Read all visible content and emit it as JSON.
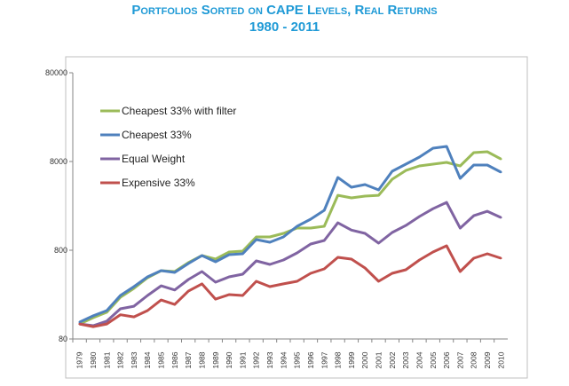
{
  "chart_data": {
    "type": "line",
    "title": "Portfolios Sorted on CAPE Levels, Real Returns",
    "subtitle": "1980 - 2011",
    "xlabel": "",
    "ylabel": "",
    "y_scale": "log",
    "ylim": [
      80,
      80000
    ],
    "yticks": [
      "80",
      "800",
      "8000",
      "80000"
    ],
    "grid": false,
    "legend_position": "top-left",
    "x": [
      "1979",
      "1980",
      "1981",
      "1982",
      "1983",
      "1984",
      "1985",
      "1986",
      "1987",
      "1988",
      "1989",
      "1990",
      "1991",
      "1992",
      "1993",
      "1994",
      "1995",
      "1996",
      "1997",
      "1998",
      "1999",
      "2000",
      "2001",
      "2002",
      "2003",
      "2004",
      "2005",
      "2006",
      "2007",
      "2008",
      "2009",
      "2010"
    ],
    "series": [
      {
        "name": "Cheapest 33% with filter",
        "color": "#9bbb59",
        "values": [
          118,
          139,
          160,
          236,
          297,
          392,
          471,
          460,
          580,
          697,
          636,
          764,
          782,
          1129,
          1129,
          1238,
          1423,
          1423,
          1490,
          3330,
          3110,
          3260,
          3330,
          5050,
          6340,
          7130,
          7460,
          7820,
          7130,
          10070,
          10300,
          8530
        ]
      },
      {
        "name": "Cheapest 33%",
        "color": "#4f81bd",
        "values": [
          124,
          146,
          167,
          247,
          311,
          401,
          471,
          450,
          566,
          697,
          593,
          713,
          730,
          1054,
          984,
          1129,
          1490,
          1791,
          2255,
          5288,
          4104,
          4400,
          3830,
          6205,
          7464,
          8970,
          11290,
          11820,
          5170,
          7290,
          7290,
          6070
        ]
      },
      {
        "name": "Equal Weight",
        "color": "#8064a2",
        "values": [
          118,
          113,
          127,
          175,
          187,
          247,
          318,
          285,
          374,
          460,
          349,
          401,
          430,
          607,
          553,
          621,
          747,
          940,
          1030,
          1630,
          1350,
          1240,
          962,
          1268,
          1520,
          1920,
          2350,
          2770,
          1420,
          1960,
          2200,
          1870
        ]
      },
      {
        "name": "Expensive 33%",
        "color": "#c0504d",
        "values": [
          118,
          110,
          118,
          150,
          142,
          167,
          220,
          196,
          277,
          334,
          225,
          253,
          247,
          357,
          311,
          334,
          357,
          440,
          493,
          665,
          636,
          505,
          357,
          440,
          482,
          621,
          764,
          898,
          460,
          650,
          730,
          650
        ]
      }
    ]
  }
}
